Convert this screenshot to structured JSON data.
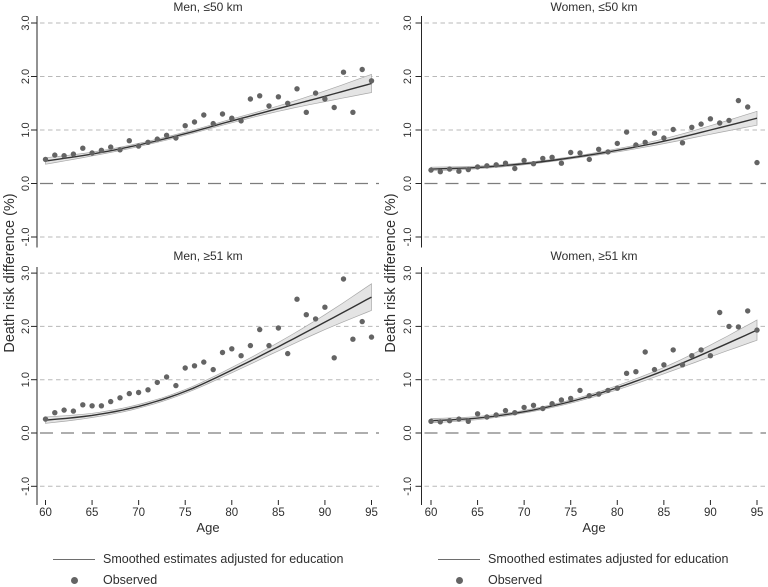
{
  "figure": {
    "ylabel": "Death risk difference (%)",
    "xlabel": "Age",
    "legend": [
      {
        "symbol": "line-swatch",
        "label": "Smoothed estimates adjusted for education"
      },
      {
        "symbol": "dot-swatch",
        "label": "Observed"
      }
    ],
    "colors": {
      "background": "#ffffff",
      "grid_dashed": "#b8b8b8",
      "zero_line": "#7d7d7d",
      "smoothed_line": "#333333",
      "legend_line": "#6e6e6e",
      "confidence_band_fill": "#e4e4e4",
      "confidence_band_edge": "#a8a8a8",
      "observed_dot": "#646464",
      "axis": "#262626",
      "text": "#2f2f2f"
    }
  },
  "chart_data": [
    {
      "type": "scatter",
      "title": "Men, ≤50 km",
      "xlabel": "Age",
      "ylabel": "Death risk difference (%)",
      "xticks": [
        60,
        65,
        70,
        75,
        80,
        85,
        90,
        95
      ],
      "yticks": [
        -1.0,
        0.0,
        1.0,
        2.0,
        3.0
      ],
      "ytick_labels": [
        "-1.0",
        "0.0",
        "1.0",
        "2.0",
        "3.0"
      ],
      "x_has_axis_labels": false,
      "ages": [
        60,
        61,
        62,
        63,
        64,
        65,
        66,
        67,
        68,
        69,
        70,
        71,
        72,
        73,
        74,
        75,
        76,
        77,
        78,
        79,
        80,
        81,
        82,
        83,
        84,
        85,
        86,
        87,
        88,
        89,
        90,
        91,
        92,
        93,
        94,
        95
      ],
      "observed": [
        0.45,
        0.53,
        0.52,
        0.55,
        0.66,
        0.57,
        0.62,
        0.68,
        0.63,
        0.8,
        0.7,
        0.77,
        0.83,
        0.9,
        0.85,
        1.08,
        1.15,
        1.28,
        1.12,
        1.3,
        1.22,
        1.17,
        1.58,
        1.64,
        1.45,
        1.62,
        1.5,
        1.77,
        1.33,
        1.69,
        1.58,
        1.42,
        2.08,
        1.33,
        2.13,
        1.92
      ],
      "smooth_x": [
        60,
        65,
        70,
        75,
        80,
        85,
        90,
        95
      ],
      "smooth_y": [
        0.42,
        0.55,
        0.72,
        0.93,
        1.17,
        1.4,
        1.63,
        1.87
      ],
      "band_halfwidth": [
        0.06,
        0.035,
        0.03,
        0.03,
        0.035,
        0.05,
        0.1,
        0.17
      ]
    },
    {
      "type": "scatter",
      "title": "Women, ≤50 km",
      "xlabel": "Age",
      "ylabel": "Death risk difference (%)",
      "xticks": [
        60,
        65,
        70,
        75,
        80,
        85,
        90,
        95
      ],
      "yticks": [
        -1.0,
        0.0,
        1.0,
        2.0,
        3.0
      ],
      "ytick_labels": [
        "-1.0",
        "0.0",
        "1.0",
        "2.0",
        "3.0"
      ],
      "x_has_axis_labels": false,
      "ages": [
        60,
        61,
        62,
        63,
        64,
        65,
        66,
        67,
        68,
        69,
        70,
        71,
        72,
        73,
        74,
        75,
        76,
        77,
        78,
        79,
        80,
        81,
        82,
        83,
        84,
        85,
        86,
        87,
        88,
        89,
        90,
        91,
        92,
        93,
        94,
        95
      ],
      "observed": [
        0.25,
        0.22,
        0.27,
        0.23,
        0.26,
        0.31,
        0.33,
        0.35,
        0.38,
        0.28,
        0.43,
        0.37,
        0.47,
        0.49,
        0.38,
        0.58,
        0.57,
        0.45,
        0.64,
        0.59,
        0.75,
        0.96,
        0.72,
        0.77,
        0.94,
        0.85,
        1.01,
        0.76,
        1.05,
        1.11,
        1.21,
        1.13,
        1.18,
        1.55,
        1.43,
        0.39
      ],
      "smooth_x": [
        60,
        65,
        70,
        75,
        80,
        85,
        90,
        95
      ],
      "smooth_y": [
        0.27,
        0.3,
        0.37,
        0.48,
        0.62,
        0.79,
        1.0,
        1.22
      ],
      "band_halfwidth": [
        0.035,
        0.025,
        0.02,
        0.02,
        0.03,
        0.045,
        0.08,
        0.13
      ]
    },
    {
      "type": "scatter",
      "title": "Men, ≥51 km",
      "xlabel": "Age",
      "ylabel": "Death risk difference (%)",
      "xticks": [
        60,
        65,
        70,
        75,
        80,
        85,
        90,
        95
      ],
      "yticks": [
        -1.0,
        0.0,
        1.0,
        2.0,
        3.0
      ],
      "ytick_labels": [
        "-1.0",
        "0.0",
        "1.0",
        "2.0",
        "3.0"
      ],
      "x_has_axis_labels": true,
      "ages": [
        60,
        61,
        62,
        63,
        64,
        65,
        66,
        67,
        68,
        69,
        70,
        71,
        72,
        73,
        74,
        75,
        76,
        77,
        78,
        79,
        80,
        81,
        82,
        83,
        84,
        85,
        86,
        87,
        88,
        89,
        90,
        91,
        92,
        93,
        94,
        95
      ],
      "observed": [
        0.26,
        0.38,
        0.43,
        0.41,
        0.53,
        0.51,
        0.51,
        0.59,
        0.66,
        0.74,
        0.76,
        0.81,
        0.95,
        1.05,
        0.89,
        1.22,
        1.26,
        1.33,
        1.19,
        1.51,
        1.58,
        1.45,
        1.64,
        1.94,
        1.64,
        1.97,
        1.49,
        2.51,
        2.22,
        2.14,
        2.36,
        1.41,
        2.89,
        1.76,
        2.09,
        1.8
      ],
      "smooth_x": [
        60,
        65,
        70,
        75,
        80,
        85,
        90,
        95
      ],
      "smooth_y": [
        0.24,
        0.33,
        0.5,
        0.78,
        1.18,
        1.62,
        2.08,
        2.55
      ],
      "band_halfwidth": [
        0.06,
        0.04,
        0.035,
        0.035,
        0.05,
        0.08,
        0.14,
        0.25
      ]
    },
    {
      "type": "scatter",
      "title": "Women, ≥51 km",
      "xlabel": "Age",
      "ylabel": "Death risk difference (%)",
      "xticks": [
        60,
        65,
        70,
        75,
        80,
        85,
        90,
        95
      ],
      "yticks": [
        -1.0,
        0.0,
        1.0,
        2.0,
        3.0
      ],
      "ytick_labels": [
        "-1.0",
        "0.0",
        "1.0",
        "2.0",
        "3.0"
      ],
      "x_has_axis_labels": true,
      "ages": [
        60,
        61,
        62,
        63,
        64,
        65,
        66,
        67,
        68,
        69,
        70,
        71,
        72,
        73,
        74,
        75,
        76,
        77,
        78,
        79,
        80,
        81,
        82,
        83,
        84,
        85,
        86,
        87,
        88,
        89,
        90,
        91,
        92,
        93,
        94,
        95
      ],
      "observed": [
        0.22,
        0.21,
        0.23,
        0.26,
        0.22,
        0.36,
        0.3,
        0.34,
        0.42,
        0.38,
        0.48,
        0.52,
        0.46,
        0.55,
        0.62,
        0.65,
        0.8,
        0.7,
        0.73,
        0.8,
        0.84,
        1.12,
        1.15,
        1.52,
        1.19,
        1.28,
        1.56,
        1.28,
        1.45,
        1.56,
        1.45,
        2.26,
        2.0,
        1.99,
        2.29,
        1.93
      ],
      "smooth_x": [
        60,
        65,
        70,
        75,
        80,
        85,
        90,
        95
      ],
      "smooth_y": [
        0.23,
        0.28,
        0.4,
        0.59,
        0.85,
        1.17,
        1.54,
        1.93
      ],
      "band_halfwidth": [
        0.04,
        0.03,
        0.025,
        0.03,
        0.04,
        0.06,
        0.11,
        0.19
      ]
    }
  ]
}
